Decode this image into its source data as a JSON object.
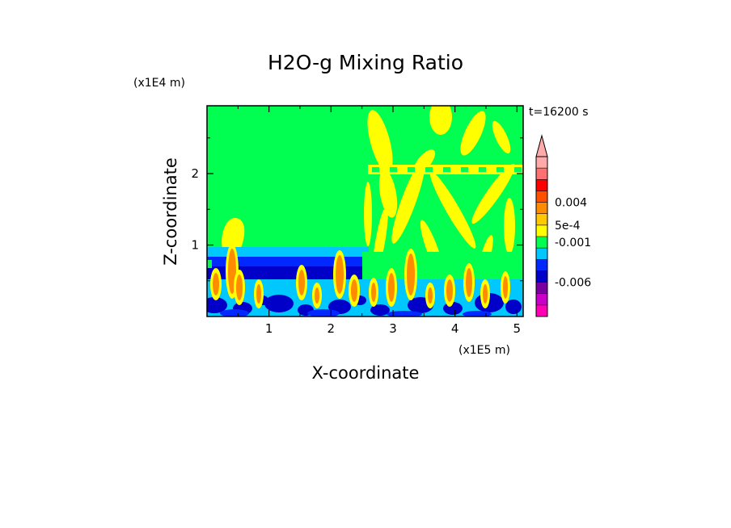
{
  "chart_data": {
    "type": "heatmap",
    "title": "H2O-g Mixing Ratio",
    "xlabel": "X-coordinate",
    "ylabel": "Z-coordinate",
    "x_units": "(x1E5 m)",
    "y_units": "(x1E4 m)",
    "time_label": "t=16200 s",
    "xlim": [
      0,
      5.1
    ],
    "ylim": [
      0,
      2.95
    ],
    "x_ticks": [
      1,
      2,
      3,
      4,
      5
    ],
    "y_ticks": [
      1,
      2
    ],
    "colorbar": {
      "colors": [
        "#ff00b4",
        "#c800c8",
        "#7800a0",
        "#0000c8",
        "#0028ff",
        "#00c8ff",
        "#00ff50",
        "#ffff00",
        "#ffc800",
        "#ff8c00",
        "#ff5000",
        "#ff0000",
        "#ff7070",
        "#ffaaaa"
      ],
      "extend_top": true,
      "labels": [
        {
          "text": "0.004",
          "level": 10
        },
        {
          "text": "5e-4",
          "level": 8
        },
        {
          "text": "-0.001",
          "level": 6.5
        },
        {
          "text": "-0.006",
          "level": 3
        }
      ]
    }
  }
}
